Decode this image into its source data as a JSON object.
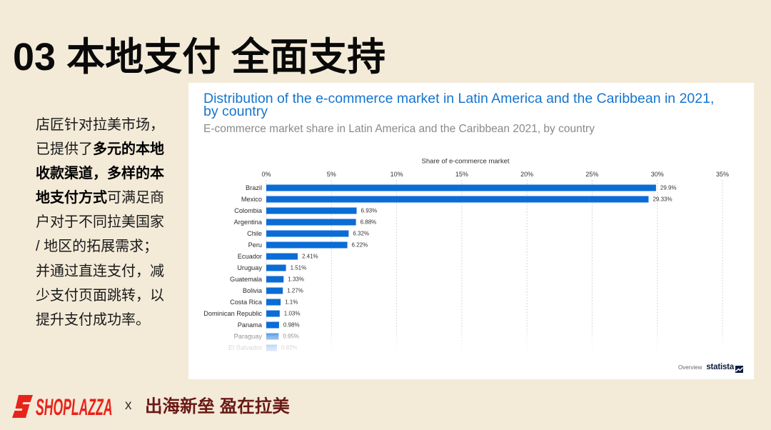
{
  "slide": {
    "title": "03 本地支付 全面支持"
  },
  "intro": {
    "lines": [
      [
        {
          "text": "店匠针对拉美市场，",
          "bold": false
        }
      ],
      [
        {
          "text": "已提供了",
          "bold": false
        },
        {
          "text": "多元的本地",
          "bold": true
        }
      ],
      [
        {
          "text": "收款渠道，多样的本",
          "bold": true
        }
      ],
      [
        {
          "text": "地支付方式",
          "bold": true
        },
        {
          "text": "可满足商",
          "bold": false
        }
      ],
      [
        {
          "text": "户对于不同拉美国家",
          "bold": false
        }
      ],
      [
        {
          "text": "/ 地区的拓展需求；",
          "bold": false
        }
      ],
      [
        {
          "text": "并通过直连支付，减",
          "bold": false
        }
      ],
      [
        {
          "text": "少支付页面跳转，以",
          "bold": false
        }
      ],
      [
        {
          "text": "提升支付成功率。",
          "bold": false
        }
      ]
    ]
  },
  "statista_panel": {
    "overview_label": "Overview",
    "brand": "statista"
  },
  "footer": {
    "brand": "SHOPLAZZA",
    "separator": "x",
    "slogan": "出海新垒 盈在拉美"
  },
  "icons": {
    "brand_logo": "shoplazza-logo-icon",
    "statista_logo": "statista-logo-icon"
  },
  "colors": {
    "background": "#f3ead8",
    "chart_title": "#1475cf",
    "bar": "#0b6cd6",
    "brand_red": "#e8231a",
    "slogan": "#6a1915"
  },
  "chart_data": {
    "type": "bar",
    "orientation": "horizontal",
    "title": "Distribution of the e-commerce market in Latin America and the Caribbean in 2021, by country",
    "subtitle": "E-commerce market share in Latin America and the Caribbean 2021, by country",
    "xlabel": "Share of e-commerce market",
    "ylabel": "",
    "xlim": [
      0,
      35
    ],
    "tick_values": [
      0,
      5,
      10,
      15,
      20,
      25,
      30,
      35
    ],
    "tick_labels": [
      "0%",
      "5%",
      "10%",
      "15%",
      "20%",
      "25%",
      "30%",
      "35%"
    ],
    "categories": [
      "Brazil",
      "Mexico",
      "Colombia",
      "Argentina",
      "Chile",
      "Peru",
      "Ecuador",
      "Uruguay",
      "Guatemala",
      "Bolivia",
      "Costa Rica",
      "Dominican Republic",
      "Panama",
      "Paraguay",
      "El Salvador"
    ],
    "values": [
      29.9,
      29.33,
      6.93,
      6.88,
      6.32,
      6.22,
      2.41,
      1.51,
      1.33,
      1.27,
      1.1,
      1.03,
      0.98,
      0.95,
      0.82
    ],
    "value_labels": [
      "29.9%",
      "29.33%",
      "6.93%",
      "6.88%",
      "6.32%",
      "6.22%",
      "2.41%",
      "1.51%",
      "1.33%",
      "1.27%",
      "1.1%",
      "1.03%",
      "0.98%",
      "0.95%",
      "0.82%"
    ],
    "grid": true,
    "bar_color": "#0b6cd6"
  }
}
